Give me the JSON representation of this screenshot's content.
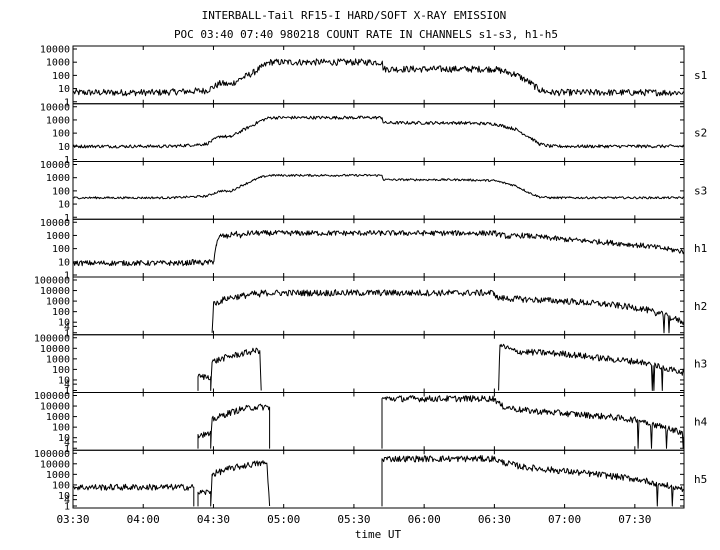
{
  "header": {
    "title": "INTERBALL-Tail RF15-I HARD/SOFT X-RAY EMISSION",
    "subtitle": "POC 03:40 07:40 980218  COUNT RATE IN CHANNELS s1-s3, h1-h5"
  },
  "chart_data": {
    "type": "line",
    "title": "INTERBALL-Tail RF15-I HARD/SOFT X-RAY EMISSION",
    "subtitle": "POC 03:40 07:40 980218  COUNT RATE IN CHANNELS s1-s3, h1-h5",
    "xlabel": "time UT",
    "ylabel": "",
    "x_unit": "hours UT",
    "xlim": [
      3.5,
      7.85
    ],
    "x_ticks": [
      3.5,
      4.0,
      4.5,
      5.0,
      5.5,
      6.0,
      6.5,
      7.0,
      7.5
    ],
    "x_tick_labels": [
      "03:30",
      "04:00",
      "04:30",
      "05:00",
      "05:30",
      "06:00",
      "06:30",
      "07:00",
      "07:30"
    ],
    "y_scale": "log",
    "grid": false,
    "panels": [
      {
        "name": "s1",
        "ylim": [
          1,
          10000
        ],
        "y_ticks": [
          1,
          10,
          100,
          1000,
          10000
        ],
        "y_tick_labels": [
          "1",
          "10",
          "100",
          "1000",
          "10000"
        ],
        "points": [
          [
            3.5,
            5
          ],
          [
            4.1,
            5
          ],
          [
            4.45,
            7
          ],
          [
            4.55,
            25
          ],
          [
            4.62,
            20
          ],
          [
            4.7,
            60
          ],
          [
            4.78,
            150
          ],
          [
            4.84,
            400
          ],
          [
            4.9,
            1000
          ],
          [
            5.7,
            1000
          ],
          [
            5.71,
            300
          ],
          [
            6.25,
            300
          ],
          [
            6.5,
            300
          ],
          [
            6.65,
            120
          ],
          [
            6.75,
            30
          ],
          [
            6.82,
            8
          ],
          [
            6.9,
            5
          ],
          [
            7.85,
            5
          ]
        ],
        "noise": 0.25
      },
      {
        "name": "s2",
        "ylim": [
          1,
          10000
        ],
        "y_ticks": [
          1,
          10,
          100,
          1000,
          10000
        ],
        "y_tick_labels": [
          "1",
          "10",
          "100",
          "1000",
          "10000"
        ],
        "points": [
          [
            3.5,
            10
          ],
          [
            4.2,
            10
          ],
          [
            4.45,
            15
          ],
          [
            4.55,
            60
          ],
          [
            4.62,
            50
          ],
          [
            4.7,
            150
          ],
          [
            4.78,
            400
          ],
          [
            4.84,
            900
          ],
          [
            4.9,
            1500
          ],
          [
            5.7,
            1500
          ],
          [
            5.71,
            600
          ],
          [
            6.25,
            600
          ],
          [
            6.5,
            500
          ],
          [
            6.65,
            200
          ],
          [
            6.75,
            50
          ],
          [
            6.82,
            15
          ],
          [
            6.9,
            10
          ],
          [
            7.85,
            10
          ]
        ],
        "noise": 0.12
      },
      {
        "name": "s3",
        "ylim": [
          1,
          10000
        ],
        "y_ticks": [
          1,
          10,
          100,
          1000,
          10000
        ],
        "y_tick_labels": [
          "1",
          "10",
          "100",
          "1000",
          "10000"
        ],
        "points": [
          [
            3.5,
            30
          ],
          [
            4.2,
            30
          ],
          [
            4.45,
            40
          ],
          [
            4.55,
            100
          ],
          [
            4.62,
            90
          ],
          [
            4.7,
            250
          ],
          [
            4.78,
            600
          ],
          [
            4.84,
            1100
          ],
          [
            4.9,
            1500
          ],
          [
            5.7,
            1500
          ],
          [
            5.71,
            700
          ],
          [
            6.25,
            700
          ],
          [
            6.5,
            600
          ],
          [
            6.65,
            250
          ],
          [
            6.75,
            70
          ],
          [
            6.82,
            35
          ],
          [
            6.9,
            30
          ],
          [
            7.85,
            30
          ]
        ],
        "noise": 0.08
      },
      {
        "name": "h1",
        "ylim": [
          1,
          10000
        ],
        "y_ticks": [
          1,
          10,
          100,
          1000,
          10000
        ],
        "y_tick_labels": [
          "1",
          "10",
          "100",
          "1000",
          "10000"
        ],
        "points": [
          [
            3.5,
            8
          ],
          [
            4.3,
            8
          ],
          [
            4.37,
            10
          ],
          [
            4.42,
            8
          ],
          [
            4.5,
            10
          ],
          [
            4.52,
            200
          ],
          [
            4.55,
            1000
          ],
          [
            4.6,
            800
          ],
          [
            4.65,
            1500
          ],
          [
            4.7,
            900
          ],
          [
            4.75,
            1500
          ],
          [
            4.85,
            1500
          ],
          [
            5.7,
            1500
          ],
          [
            6.5,
            1500
          ],
          [
            6.6,
            800
          ],
          [
            6.7,
            1000
          ],
          [
            7.0,
            500
          ],
          [
            7.3,
            300
          ],
          [
            7.6,
            150
          ],
          [
            7.85,
            60
          ]
        ],
        "noise": 0.2
      },
      {
        "name": "h2",
        "ylim": [
          1,
          100000
        ],
        "y_ticks": [
          1,
          4,
          10,
          100,
          1000,
          10000,
          100000
        ],
        "y_tick_labels": [
          "1",
          "4",
          "10",
          "100",
          "1000",
          "10000",
          "100000"
        ],
        "start": 4.49,
        "points": [
          [
            4.49,
            1
          ],
          [
            4.5,
            500
          ],
          [
            4.6,
            2000
          ],
          [
            4.7,
            3000
          ],
          [
            4.8,
            5000
          ],
          [
            4.83,
            3000
          ],
          [
            4.84,
            6000
          ],
          [
            5.7,
            6000
          ],
          [
            6.5,
            6000
          ],
          [
            6.52,
            2000
          ],
          [
            6.7,
            1500
          ],
          [
            7.0,
            1000
          ],
          [
            7.3,
            500
          ],
          [
            7.55,
            200
          ],
          [
            7.7,
            50
          ],
          [
            7.85,
            10
          ]
        ],
        "noise": 0.3,
        "dropout_after": 7.6
      },
      {
        "name": "h3",
        "ylim": [
          1,
          100000
        ],
        "y_ticks": [
          1,
          4,
          10,
          100,
          1000,
          10000,
          100000
        ],
        "y_tick_labels": [
          "1",
          "4",
          "10",
          "100",
          "1000",
          "10000",
          "100000"
        ],
        "segments": [
          [
            [
              4.39,
              1
            ],
            [
              4.39,
              20
            ],
            [
              4.48,
              20
            ],
            [
              4.48,
              1
            ],
            [
              4.49,
              500
            ],
            [
              4.6,
              1500
            ],
            [
              4.7,
              3000
            ],
            [
              4.8,
              6000
            ],
            [
              4.83,
              6000
            ],
            [
              4.84,
              1
            ]
          ],
          [
            [
              6.53,
              1
            ],
            [
              6.54,
              20000
            ],
            [
              6.65,
              5000
            ],
            [
              7.0,
              3000
            ],
            [
              7.3,
              1000
            ],
            [
              7.55,
              500
            ],
            [
              7.7,
              150
            ],
            [
              7.85,
              50
            ]
          ]
        ],
        "noise": 0.3,
        "dropout_after": 7.55
      },
      {
        "name": "h4",
        "ylim": [
          1,
          100000
        ],
        "y_ticks": [
          1,
          4,
          10,
          100,
          1000,
          10000,
          100000
        ],
        "y_tick_labels": [
          "1",
          "4",
          "10",
          "100",
          "1000",
          "10000",
          "100000"
        ],
        "segments": [
          [
            [
              4.39,
              1
            ],
            [
              4.39,
              20
            ],
            [
              4.48,
              20
            ],
            [
              4.48,
              1
            ],
            [
              4.49,
              500
            ],
            [
              4.6,
              2000
            ],
            [
              4.7,
              5000
            ],
            [
              4.8,
              8000
            ],
            [
              4.9,
              8000
            ],
            [
              4.9,
              1
            ]
          ],
          [
            [
              5.7,
              1
            ],
            [
              5.7,
              50000
            ],
            [
              6.5,
              50000
            ],
            [
              6.55,
              10000
            ],
            [
              6.7,
              4000
            ],
            [
              7.0,
              2000
            ],
            [
              7.3,
              1000
            ],
            [
              7.55,
              400
            ],
            [
              7.7,
              100
            ],
            [
              7.85,
              30
            ]
          ]
        ],
        "noise": 0.3,
        "dropout_after": 7.5
      },
      {
        "name": "h5",
        "ylim": [
          1,
          100000
        ],
        "y_ticks": [
          1,
          4,
          10,
          100,
          1000,
          10000,
          100000
        ],
        "y_tick_labels": [
          "1",
          "4",
          "10",
          "100",
          "1000",
          "10000",
          "100000"
        ],
        "segments": [
          [
            [
              3.5,
              60
            ],
            [
              4.36,
              60
            ],
            [
              4.36,
              1
            ]
          ],
          [
            [
              4.39,
              1
            ],
            [
              4.39,
              20
            ],
            [
              4.48,
              20
            ],
            [
              4.48,
              1
            ],
            [
              4.49,
              1000
            ],
            [
              4.6,
              3000
            ],
            [
              4.7,
              6000
            ],
            [
              4.8,
              10000
            ],
            [
              4.88,
              12000
            ],
            [
              4.9,
              1
            ]
          ],
          [
            [
              5.7,
              1
            ],
            [
              5.7,
              30000
            ],
            [
              6.5,
              30000
            ],
            [
              6.55,
              15000
            ],
            [
              6.7,
              5000
            ],
            [
              7.0,
              2000
            ],
            [
              7.3,
              800
            ],
            [
              7.55,
              300
            ],
            [
              7.7,
              100
            ],
            [
              7.85,
              40
            ]
          ]
        ],
        "noise": 0.3,
        "dropout_after": 7.55
      }
    ]
  }
}
